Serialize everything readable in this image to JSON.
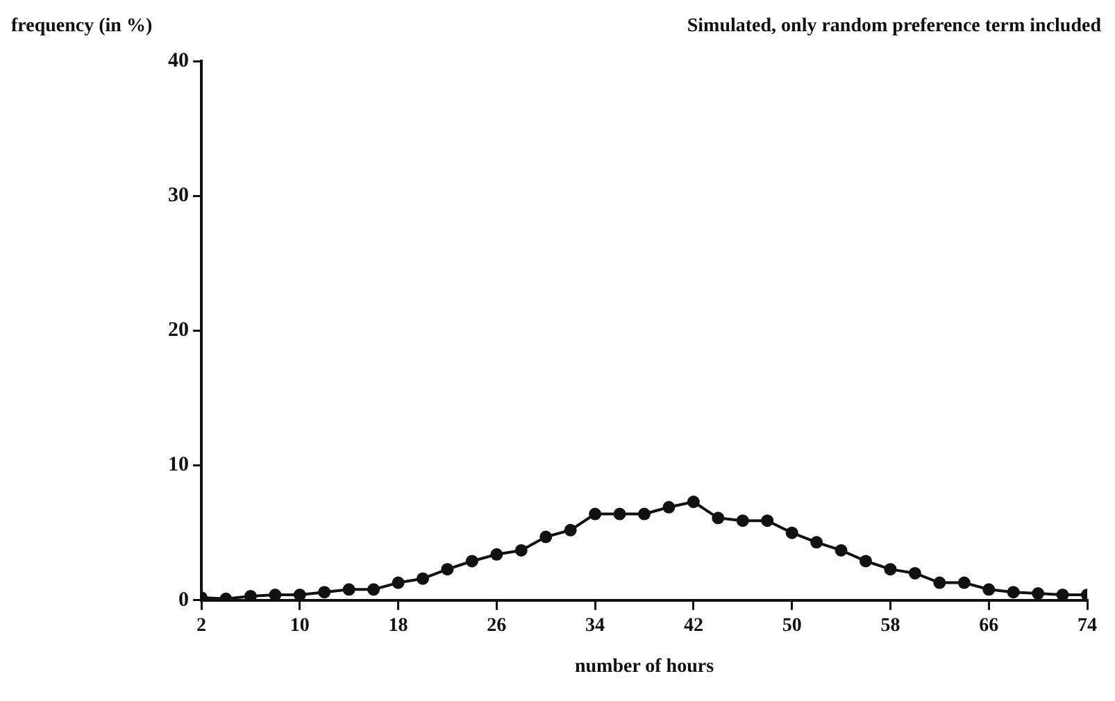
{
  "chart_data": {
    "type": "line",
    "title": "Simulated, only random preference term included",
    "xlabel": "number of hours",
    "ylabel": "frequency (in %)",
    "x": [
      2,
      4,
      6,
      8,
      10,
      12,
      14,
      16,
      18,
      20,
      22,
      24,
      26,
      28,
      30,
      32,
      34,
      36,
      38,
      40,
      42,
      44,
      46,
      48,
      50,
      52,
      54,
      56,
      58,
      60,
      62,
      64,
      66,
      68,
      70,
      72,
      74
    ],
    "series": [
      {
        "color": "#111111",
        "values": [
          0.2,
          0.1,
          0.3,
          0.4,
          0.4,
          0.6,
          0.8,
          0.8,
          1.3,
          1.6,
          2.3,
          2.9,
          3.4,
          3.7,
          4.7,
          5.2,
          6.4,
          6.4,
          6.4,
          6.9,
          7.3,
          6.1,
          5.9,
          5.9,
          5.0,
          4.3,
          3.7,
          2.9,
          2.3,
          2.0,
          1.3,
          1.3,
          0.8,
          0.6,
          0.5,
          0.4,
          0.4
        ]
      }
    ],
    "xlim": [
      2,
      74
    ],
    "xticks": [
      2,
      10,
      18,
      26,
      34,
      42,
      50,
      58,
      66,
      74
    ],
    "ylim": [
      0,
      40
    ],
    "yticks": [
      0,
      10,
      20,
      30,
      40
    ],
    "grid": false,
    "legend": false,
    "marker": "circle",
    "line_style": "solid"
  }
}
